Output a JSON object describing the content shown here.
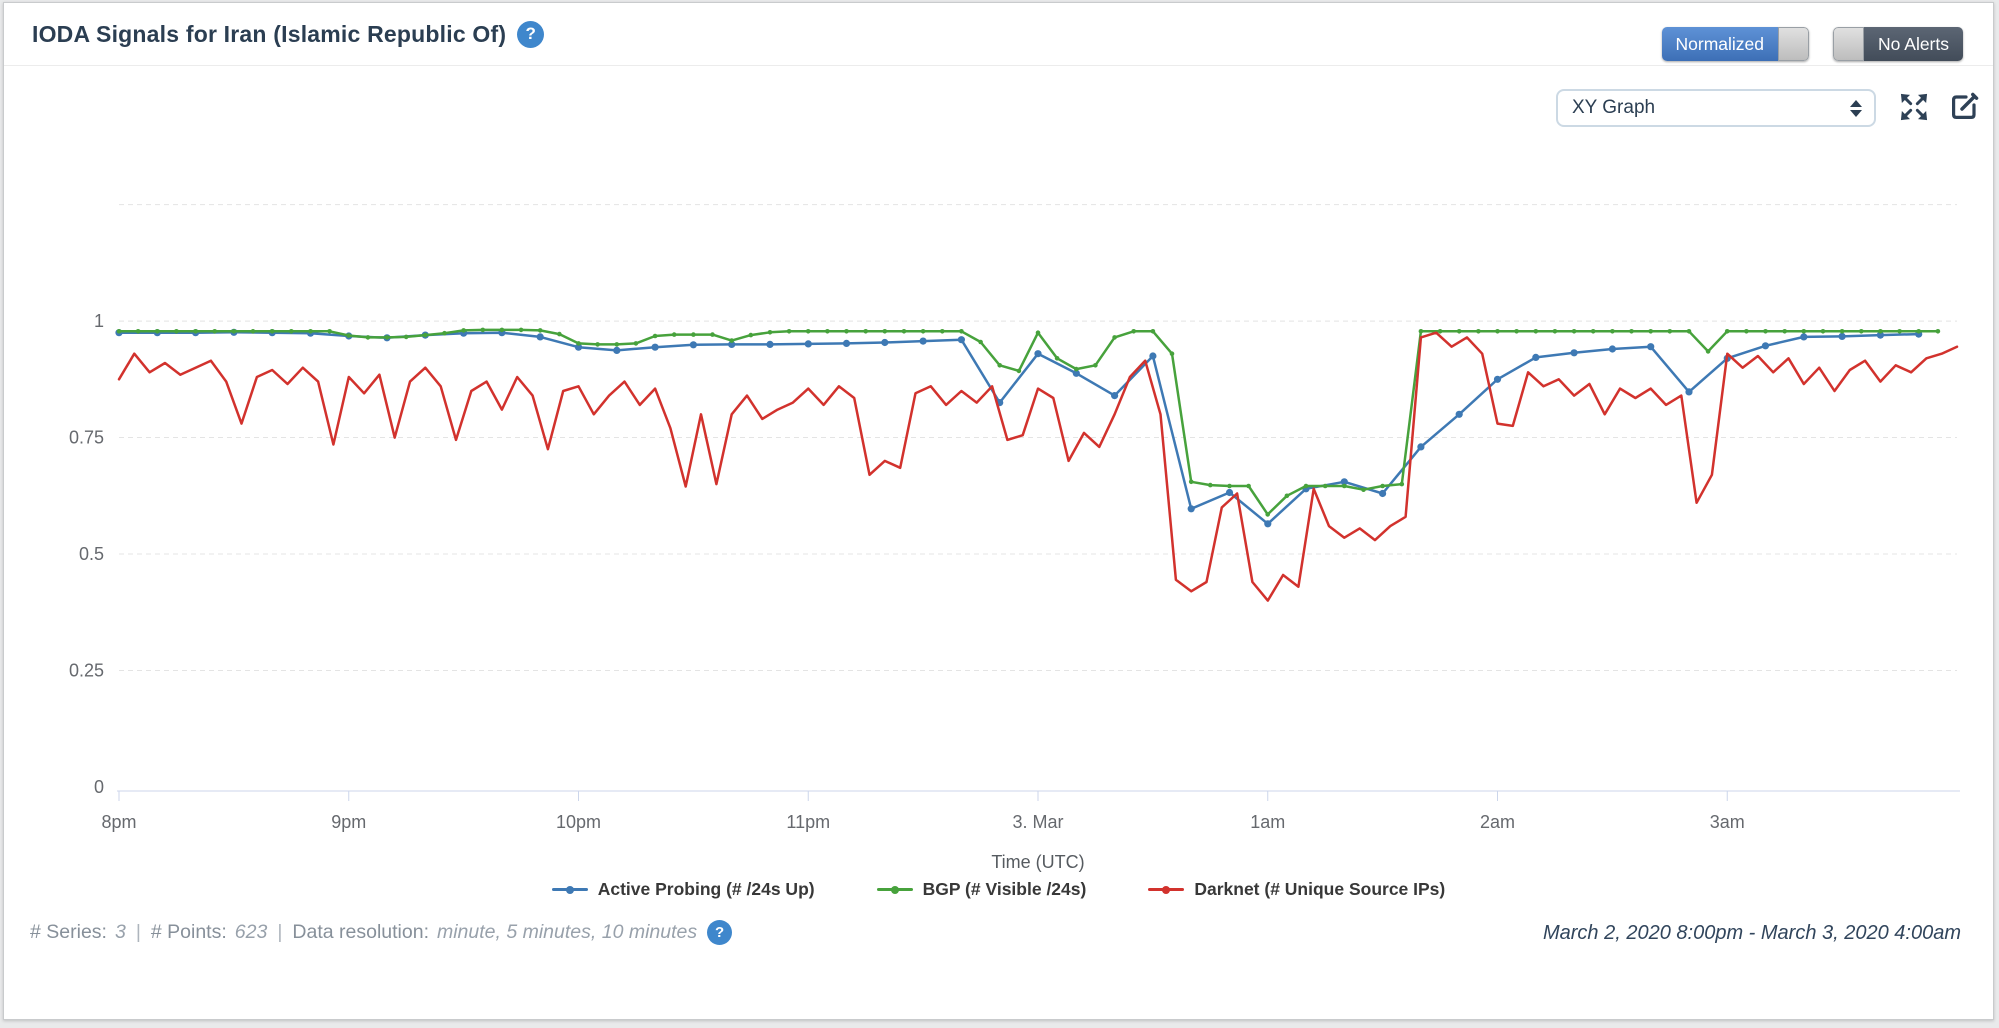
{
  "header": {
    "title": "IODA Signals for Iran (Islamic Republic Of)",
    "help_icon": "?",
    "toggles": [
      {
        "label": "Normalized",
        "state": "on",
        "color": "#4a80c9"
      },
      {
        "label": "No Alerts",
        "state": "off",
        "color": "#4d5866"
      }
    ]
  },
  "toolbar": {
    "view_select": {
      "value": "XY Graph"
    },
    "icons": [
      "expand-icon",
      "edit-icon"
    ]
  },
  "chart_data": {
    "type": "line",
    "title": "",
    "xlabel": "Time (UTC)",
    "ylabel": "",
    "ylim": [
      0,
      1.35
    ],
    "yticks": [
      0,
      0.25,
      0.5,
      0.75,
      1
    ],
    "extra_gridlines": [
      1.25
    ],
    "x_range_hours": [
      0,
      8
    ],
    "xticks": [
      {
        "t": 0,
        "label": "8pm"
      },
      {
        "t": 1,
        "label": "9pm"
      },
      {
        "t": 2,
        "label": "10pm"
      },
      {
        "t": 3,
        "label": "11pm"
      },
      {
        "t": 4,
        "label": "3. Mar"
      },
      {
        "t": 5,
        "label": "1am"
      },
      {
        "t": 6,
        "label": "2am"
      },
      {
        "t": 7,
        "label": "3am"
      }
    ],
    "grid": "dashed-horizontal",
    "legend_position": "bottom",
    "axis_color": "#ccd6eb",
    "grid_color": "#e4e4e4",
    "tick_label_color": "#66696e",
    "series": [
      {
        "name": "Active Probing (# /24s Up)",
        "color": "#3e79b4",
        "resolution": "10 minutes",
        "marker_radius": 3.6,
        "t_start": 0,
        "t_step": 0.1666667,
        "values": [
          0.975,
          0.975,
          0.975,
          0.976,
          0.975,
          0.974,
          0.968,
          0.964,
          0.97,
          0.974,
          0.975,
          0.966,
          0.944,
          0.937,
          0.944,
          0.949,
          0.95,
          0.95,
          0.951,
          0.952,
          0.954,
          0.957,
          0.96,
          0.825,
          0.93,
          0.888,
          0.84,
          0.925,
          0.597,
          0.632,
          0.565,
          0.64,
          0.655,
          0.63,
          0.73,
          0.8,
          0.875,
          0.922,
          0.932,
          0.94,
          0.945,
          0.848,
          0.92,
          0.947,
          0.966,
          0.967,
          0.97,
          0.972
        ]
      },
      {
        "name": "BGP (# Visible /24s)",
        "color": "#47a23c",
        "resolution": "5 minutes",
        "marker_radius": 2.3,
        "t_start": 0,
        "t_step": 0.0833333,
        "values": [
          0.978,
          0.978,
          0.978,
          0.978,
          0.978,
          0.978,
          0.978,
          0.978,
          0.978,
          0.978,
          0.978,
          0.978,
          0.969,
          0.965,
          0.965,
          0.966,
          0.97,
          0.974,
          0.98,
          0.981,
          0.981,
          0.981,
          0.98,
          0.972,
          0.952,
          0.95,
          0.95,
          0.952,
          0.968,
          0.971,
          0.971,
          0.971,
          0.958,
          0.97,
          0.976,
          0.978,
          0.978,
          0.978,
          0.978,
          0.978,
          0.978,
          0.978,
          0.978,
          0.978,
          0.978,
          0.955,
          0.905,
          0.893,
          0.975,
          0.92,
          0.897,
          0.905,
          0.965,
          0.978,
          0.978,
          0.93,
          0.655,
          0.648,
          0.646,
          0.646,
          0.585,
          0.625,
          0.646,
          0.646,
          0.646,
          0.638,
          0.646,
          0.65,
          0.978,
          0.978,
          0.978,
          0.978,
          0.978,
          0.978,
          0.978,
          0.978,
          0.978,
          0.978,
          0.978,
          0.978,
          0.978,
          0.978,
          0.978,
          0.935,
          0.978,
          0.978,
          0.978,
          0.978,
          0.978,
          0.978,
          0.978,
          0.978,
          0.978,
          0.978,
          0.978,
          0.978
        ]
      },
      {
        "name": "Darknet (# Unique Source IPs)",
        "color": "#d2322d",
        "resolution": "minute",
        "marker_radius": 0,
        "t_start": 0,
        "t_step": 0.0666667,
        "values": [
          0.875,
          0.93,
          0.89,
          0.91,
          0.885,
          0.9,
          0.915,
          0.87,
          0.78,
          0.88,
          0.895,
          0.865,
          0.9,
          0.87,
          0.735,
          0.88,
          0.845,
          0.885,
          0.75,
          0.87,
          0.9,
          0.86,
          0.745,
          0.85,
          0.87,
          0.81,
          0.88,
          0.84,
          0.725,
          0.85,
          0.86,
          0.8,
          0.84,
          0.87,
          0.82,
          0.855,
          0.77,
          0.645,
          0.8,
          0.65,
          0.8,
          0.84,
          0.79,
          0.81,
          0.825,
          0.855,
          0.82,
          0.86,
          0.835,
          0.67,
          0.7,
          0.685,
          0.845,
          0.86,
          0.82,
          0.85,
          0.825,
          0.86,
          0.745,
          0.755,
          0.855,
          0.835,
          0.7,
          0.76,
          0.73,
          0.8,
          0.88,
          0.915,
          0.8,
          0.445,
          0.42,
          0.44,
          0.6,
          0.63,
          0.44,
          0.4,
          0.455,
          0.43,
          0.64,
          0.56,
          0.535,
          0.555,
          0.53,
          0.56,
          0.58,
          0.965,
          0.975,
          0.945,
          0.965,
          0.93,
          0.78,
          0.775,
          0.89,
          0.86,
          0.875,
          0.84,
          0.865,
          0.8,
          0.855,
          0.835,
          0.855,
          0.82,
          0.84,
          0.61,
          0.67,
          0.93,
          0.9,
          0.925,
          0.89,
          0.92,
          0.865,
          0.9,
          0.85,
          0.895,
          0.915,
          0.87,
          0.905,
          0.89,
          0.92,
          0.93,
          0.945
        ]
      }
    ]
  },
  "footer": {
    "series_label": "# Series:",
    "series_value": "3",
    "sep": "|",
    "points_label": "# Points:",
    "points_value": "623",
    "resolution_label": "Data resolution:",
    "resolution_value": "minute, 5 minutes, 10 minutes",
    "help_icon": "?",
    "date_range": "March 2, 2020 8:00pm - March 3, 2020 4:00am"
  }
}
